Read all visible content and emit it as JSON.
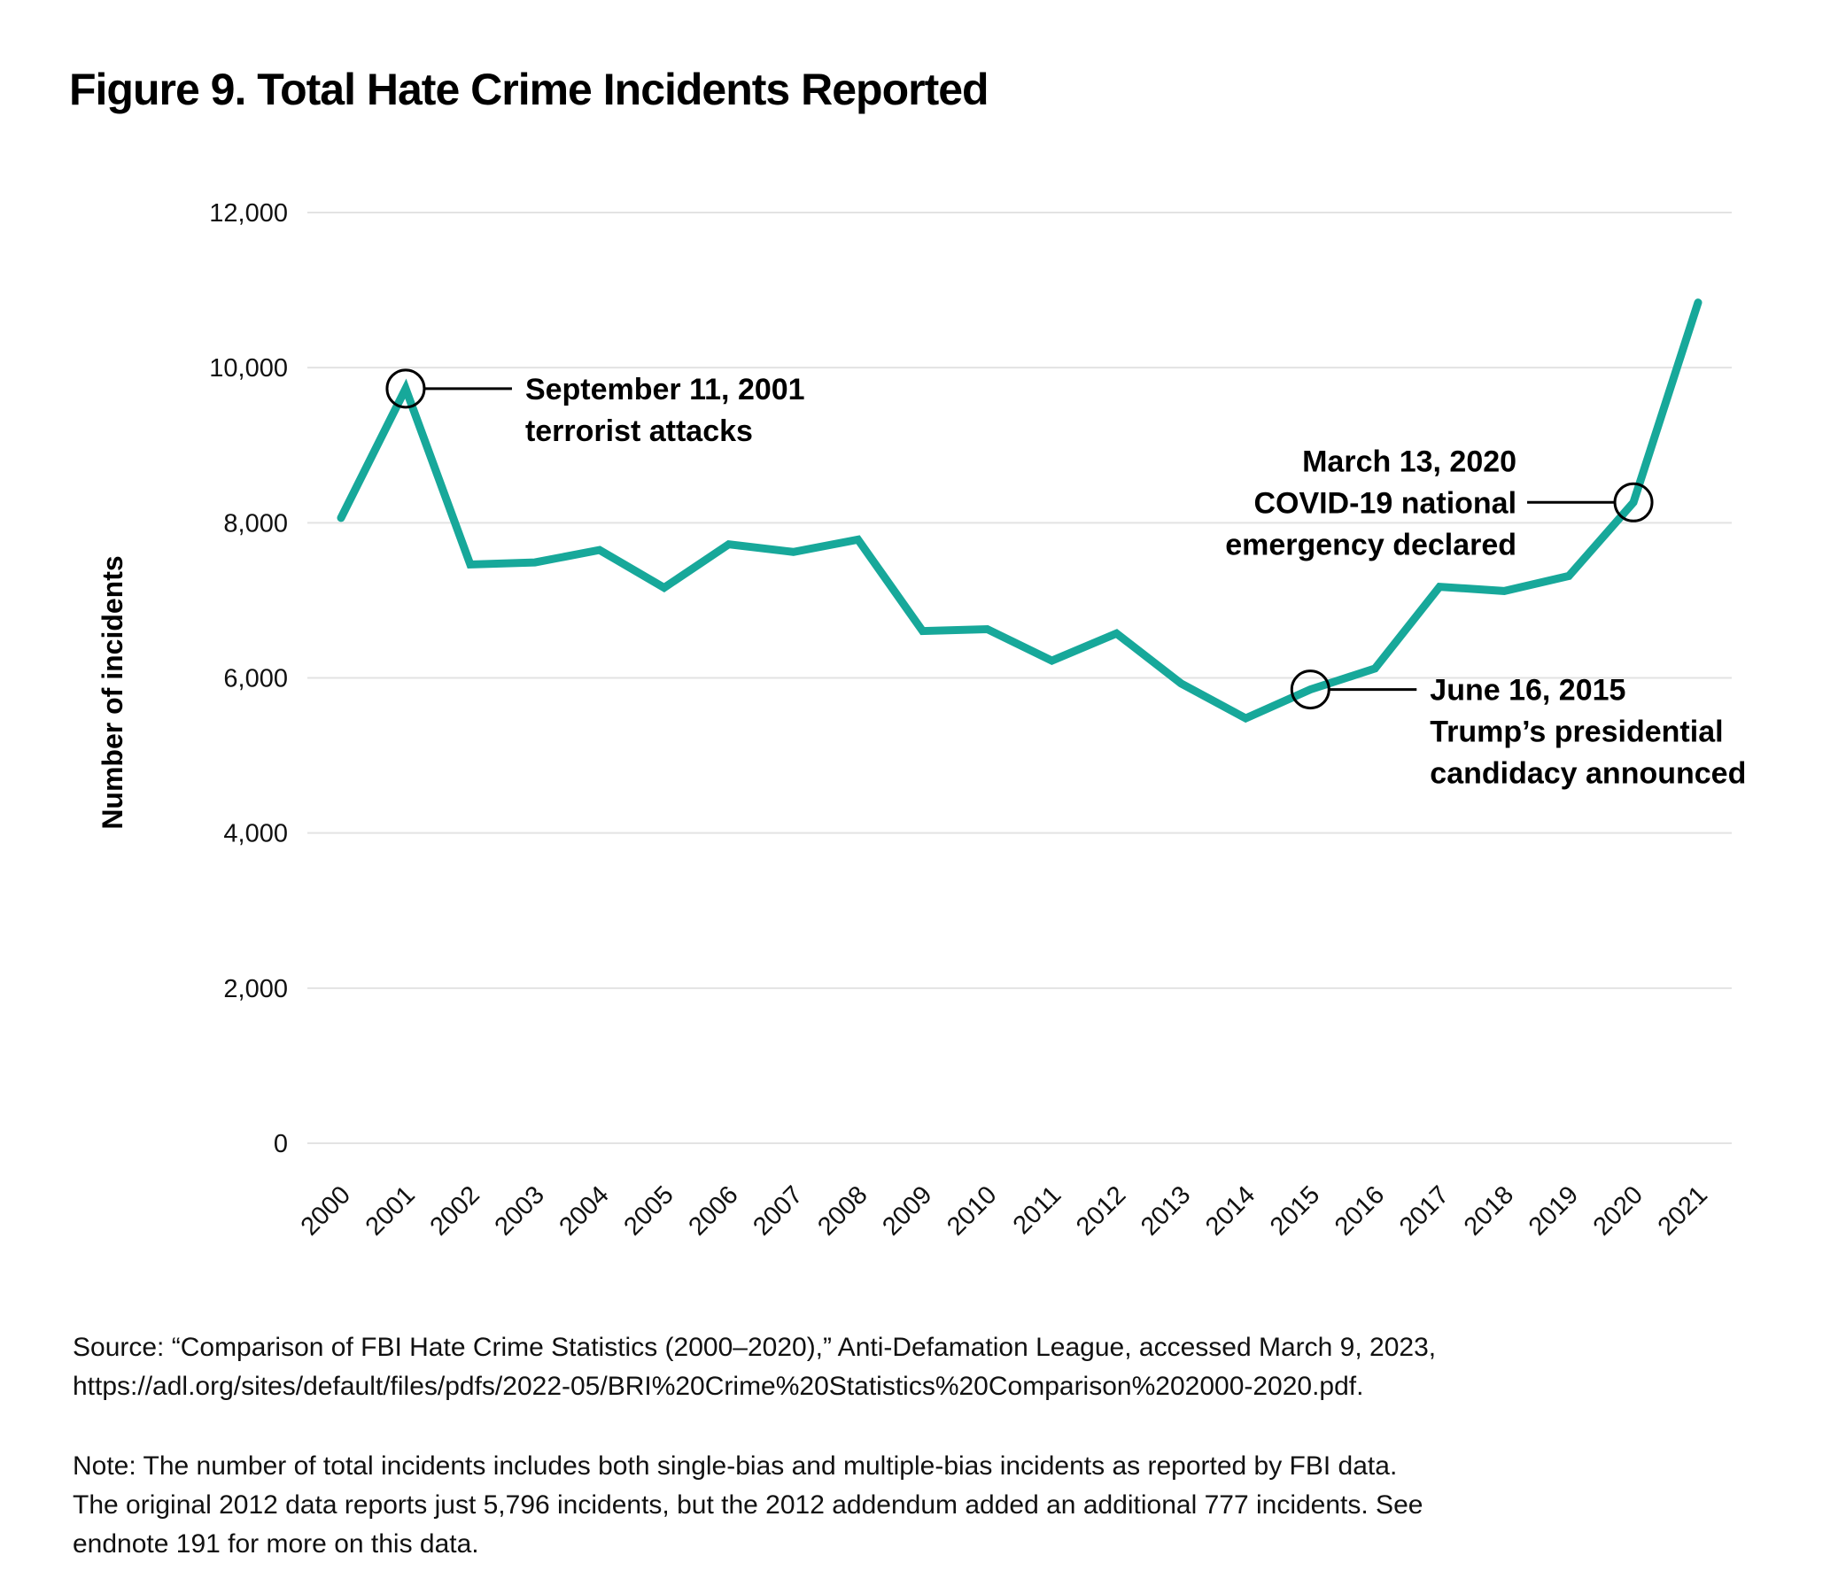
{
  "title": "Figure 9. Total Hate Crime Incidents Reported",
  "chart_data": {
    "type": "line",
    "title": "Figure 9. Total Hate Crime Incidents Reported",
    "xlabel": "",
    "ylabel": "Number of incidents",
    "ylim": [
      0,
      12000
    ],
    "yticks": [
      0,
      2000,
      4000,
      6000,
      8000,
      10000,
      12000
    ],
    "ytick_labels": [
      "0",
      "2,000",
      "4,000",
      "6,000",
      "8,000",
      "10,000",
      "12,000"
    ],
    "grid": true,
    "line_color": "#17a89a",
    "categories": [
      "2000",
      "2001",
      "2002",
      "2003",
      "2004",
      "2005",
      "2006",
      "2007",
      "2008",
      "2009",
      "2010",
      "2011",
      "2012",
      "2013",
      "2014",
      "2015",
      "2016",
      "2017",
      "2018",
      "2019",
      "2020",
      "2021"
    ],
    "values": [
      8063,
      9730,
      7462,
      7489,
      7649,
      7163,
      7722,
      7624,
      7783,
      6604,
      6628,
      6222,
      6573,
      5928,
      5479,
      5850,
      6121,
      7175,
      7120,
      7314,
      8263,
      10840
    ],
    "annotations": [
      {
        "category": "2001",
        "lines": [
          "September 11, 2001",
          "terrorist attacks"
        ],
        "side": "right"
      },
      {
        "category": "2015",
        "lines": [
          "June 16, 2015",
          "Trump’s presidential",
          "candidacy announced"
        ],
        "side": "right"
      },
      {
        "category": "2020",
        "lines": [
          "March 13, 2020",
          "COVID-19 national",
          "emergency declared"
        ],
        "side": "left"
      }
    ]
  },
  "footnotes": {
    "source": [
      "Source: “Comparison of FBI Hate Crime Statistics (2000–2020),” Anti-Defamation League, accessed March 9, 2023,",
      "https://adl.org/sites/default/files/pdfs/2022-05/BRI%20Crime%20Statistics%20Comparison%202000-2020.pdf."
    ],
    "note": [
      "Note: The number of total incidents includes both single-bias and multiple-bias incidents as reported by FBI data.",
      "The original 2012 data reports just 5,796 incidents, but the 2012 addendum added an additional 777 incidents. See",
      "endnote 191 for more on this data."
    ]
  }
}
